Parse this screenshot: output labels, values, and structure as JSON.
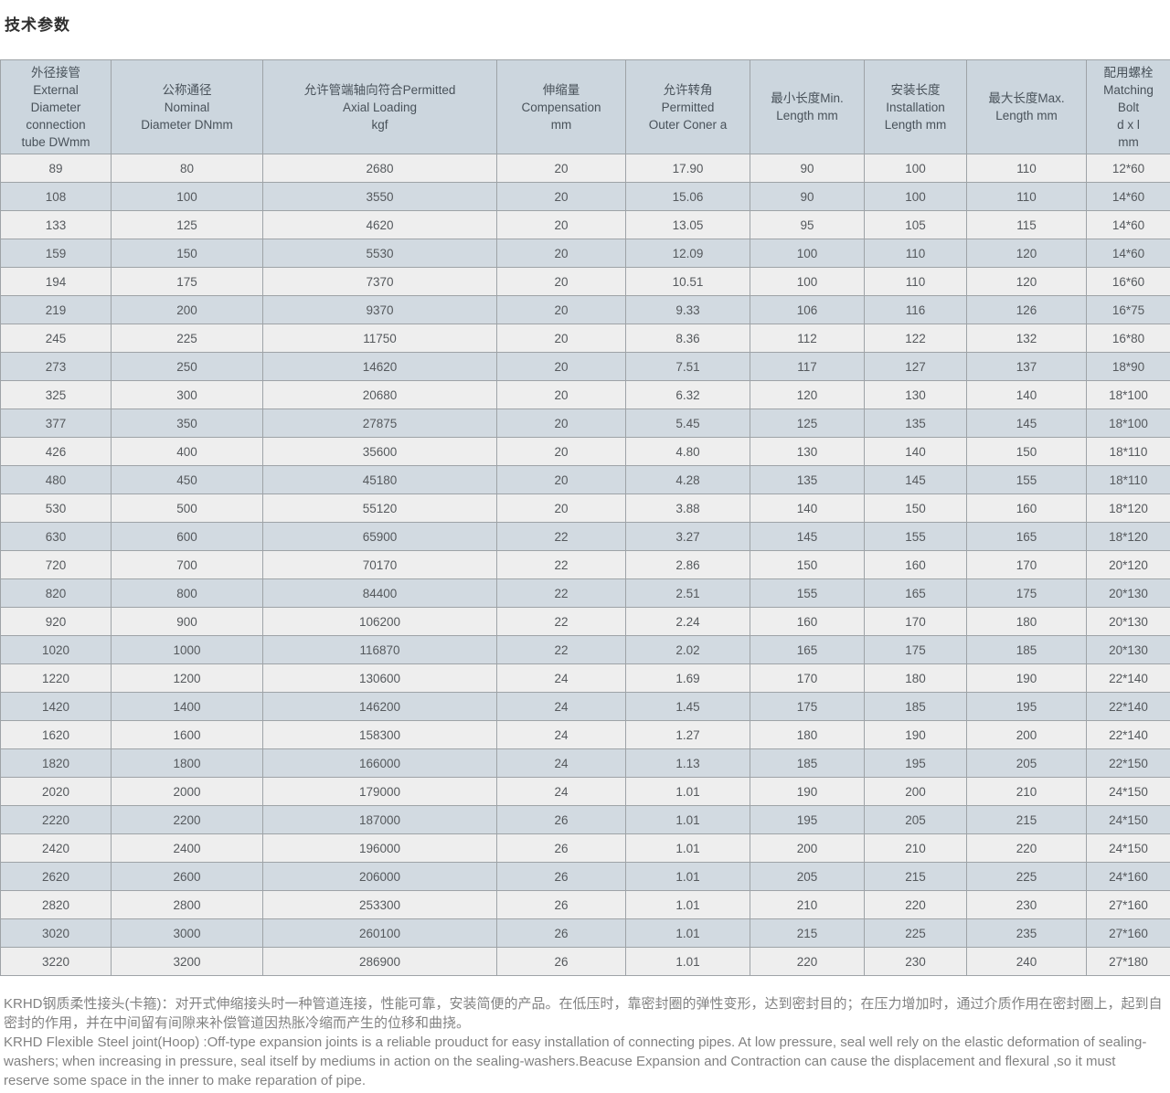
{
  "page": {
    "title": "技术参数"
  },
  "colors": {
    "header_bg": "#ccd6de",
    "row_bg": "#eeeeee",
    "row_alt_bg": "#d2dae1",
    "border": "#9ea3a7"
  },
  "table": {
    "headers": [
      "外径接管\nExternal\nDiameter\nconnection\ntube DWmm",
      "公称通径\nNominal\nDiameter DNmm",
      "允许管端轴向符合Permitted\nAxial Loading\nkgf",
      "伸缩量\nCompensation\nmm",
      "允许转角\nPermitted\nOuter Coner a",
      "最小长度Min.\nLength mm",
      "安装长度\nInstallation\nLength mm",
      "最大长度Max.\nLength mm",
      "配用螺栓\nMatching\nBolt\nd x l\nmm"
    ],
    "rows": [
      [
        "89",
        "80",
        "2680",
        "20",
        "17.90",
        "90",
        "100",
        "110",
        "12*60"
      ],
      [
        "108",
        "100",
        "3550",
        "20",
        "15.06",
        "90",
        "100",
        "110",
        "14*60"
      ],
      [
        "133",
        "125",
        "4620",
        "20",
        "13.05",
        "95",
        "105",
        "115",
        "14*60"
      ],
      [
        "159",
        "150",
        "5530",
        "20",
        "12.09",
        "100",
        "110",
        "120",
        "14*60"
      ],
      [
        "194",
        "175",
        "7370",
        "20",
        "10.51",
        "100",
        "110",
        "120",
        "16*60"
      ],
      [
        "219",
        "200",
        "9370",
        "20",
        "9.33",
        "106",
        "116",
        "126",
        "16*75"
      ],
      [
        "245",
        "225",
        "11750",
        "20",
        "8.36",
        "112",
        "122",
        "132",
        "16*80"
      ],
      [
        "273",
        "250",
        "14620",
        "20",
        "7.51",
        "117",
        "127",
        "137",
        "18*90"
      ],
      [
        "325",
        "300",
        "20680",
        "20",
        "6.32",
        "120",
        "130",
        "140",
        "18*100"
      ],
      [
        "377",
        "350",
        "27875",
        "20",
        "5.45",
        "125",
        "135",
        "145",
        "18*100"
      ],
      [
        "426",
        "400",
        "35600",
        "20",
        "4.80",
        "130",
        "140",
        "150",
        "18*110"
      ],
      [
        "480",
        "450",
        "45180",
        "20",
        "4.28",
        "135",
        "145",
        "155",
        "18*110"
      ],
      [
        "530",
        "500",
        "55120",
        "20",
        "3.88",
        "140",
        "150",
        "160",
        "18*120"
      ],
      [
        "630",
        "600",
        "65900",
        "22",
        "3.27",
        "145",
        "155",
        "165",
        "18*120"
      ],
      [
        "720",
        "700",
        "70170",
        "22",
        "2.86",
        "150",
        "160",
        "170",
        "20*120"
      ],
      [
        "820",
        "800",
        "84400",
        "22",
        "2.51",
        "155",
        "165",
        "175",
        "20*130"
      ],
      [
        "920",
        "900",
        "106200",
        "22",
        "2.24",
        "160",
        "170",
        "180",
        "20*130"
      ],
      [
        "1020",
        "1000",
        "116870",
        "22",
        "2.02",
        "165",
        "175",
        "185",
        "20*130"
      ],
      [
        "1220",
        "1200",
        "130600",
        "24",
        "1.69",
        "170",
        "180",
        "190",
        "22*140"
      ],
      [
        "1420",
        "1400",
        "146200",
        "24",
        "1.45",
        "175",
        "185",
        "195",
        "22*140"
      ],
      [
        "1620",
        "1600",
        "158300",
        "24",
        "1.27",
        "180",
        "190",
        "200",
        "22*140"
      ],
      [
        "1820",
        "1800",
        "166000",
        "24",
        "1.13",
        "185",
        "195",
        "205",
        "22*150"
      ],
      [
        "2020",
        "2000",
        "179000",
        "24",
        "1.01",
        "190",
        "200",
        "210",
        "24*150"
      ],
      [
        "2220",
        "2200",
        "187000",
        "26",
        "1.01",
        "195",
        "205",
        "215",
        "24*150"
      ],
      [
        "2420",
        "2400",
        "196000",
        "26",
        "1.01",
        "200",
        "210",
        "220",
        "24*150"
      ],
      [
        "2620",
        "2600",
        "206000",
        "26",
        "1.01",
        "205",
        "215",
        "225",
        "24*160"
      ],
      [
        "2820",
        "2800",
        "253300",
        "26",
        "1.01",
        "210",
        "220",
        "230",
        "27*160"
      ],
      [
        "3020",
        "3000",
        "260100",
        "26",
        "1.01",
        "215",
        "225",
        "235",
        "27*160"
      ],
      [
        "3220",
        "3200",
        "286900",
        "26",
        "1.01",
        "220",
        "230",
        "240",
        "27*180"
      ]
    ]
  },
  "footer": {
    "zh": "KRHD钢质柔性接头(卡箍)：对开式伸缩接头时一种管道连接，性能可靠，安装简便的产品。在低压时，靠密封圈的弹性变形，达到密封目的；在压力增加时，通过介质作用在密封圈上，起到自密封的作用，并在中间留有间隙来补偿管道因热胀冷缩而产生的位移和曲挠。",
    "en": "KRHD Flexible Steel joint(Hoop) :Off-type expansion joints is a reliable prouduct for easy installation of connecting pipes. At low pressure, seal well rely on the elastic deformation of sealing-washers; when increasing in pressure, seal itself by mediums in action on the sealing-washers.Beacuse Expansion and Contraction can cause the displacement and flexural ,so it must reserve some space in the inner to make reparation of pipe."
  }
}
